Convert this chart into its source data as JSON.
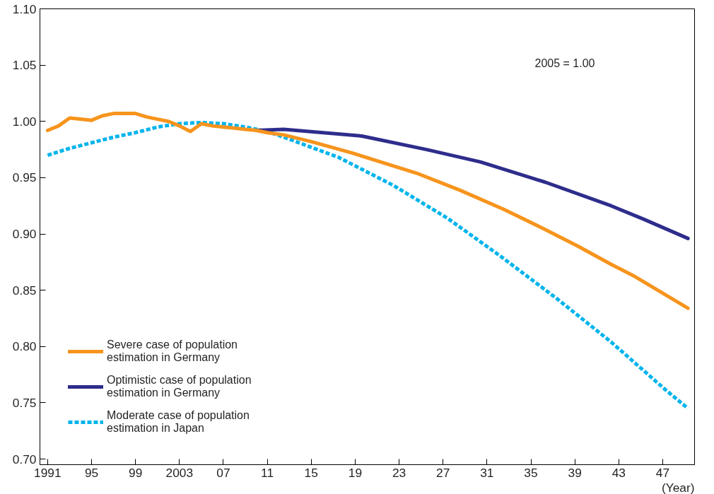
{
  "chart_data": {
    "type": "line",
    "xlabel": "(Year)",
    "annotations": [
      "2005 = 1.00"
    ],
    "xlim": [
      1990.3,
      2049.9
    ],
    "ylim": [
      0.695,
      1.1
    ],
    "xticks": [
      {
        "value": 1991,
        "label": "1991"
      },
      {
        "value": 1995,
        "label": "95"
      },
      {
        "value": 1999,
        "label": "99"
      },
      {
        "value": 2003,
        "label": "2003"
      },
      {
        "value": 2007,
        "label": "07"
      },
      {
        "value": 2011,
        "label": "11"
      },
      {
        "value": 2015,
        "label": "15"
      },
      {
        "value": 2019,
        "label": "19"
      },
      {
        "value": 2023,
        "label": "23"
      },
      {
        "value": 2027,
        "label": "27"
      },
      {
        "value": 2031,
        "label": "31"
      },
      {
        "value": 2035,
        "label": "35"
      },
      {
        "value": 2039,
        "label": "39"
      },
      {
        "value": 2043,
        "label": "43"
      },
      {
        "value": 2047,
        "label": "47"
      }
    ],
    "yticks": [
      {
        "value": 0.7,
        "label": "0.70"
      },
      {
        "value": 0.75,
        "label": "0.75"
      },
      {
        "value": 0.8,
        "label": "0.80"
      },
      {
        "value": 0.85,
        "label": "0.85"
      },
      {
        "value": 0.9,
        "label": "0.90"
      },
      {
        "value": 0.95,
        "label": "0.95"
      },
      {
        "value": 1.0,
        "label": "1.00"
      },
      {
        "value": 1.05,
        "label": "1.05"
      },
      {
        "value": 1.1,
        "label": "1.10"
      }
    ],
    "grid": false,
    "legend": "bottom left",
    "marker": "none",
    "series": [
      {
        "name": "Moderate case of population estimation in Japan",
        "color": "#00b4ec",
        "line_style": "dashed",
        "x": [
          1991,
          1993,
          1995,
          1997,
          1999,
          2001,
          2003,
          2005,
          2007,
          2009,
          2011,
          2012.5,
          2017.5,
          2022.5,
          2027.4,
          2032.4,
          2037.3,
          2042.3,
          2047.2,
          2049.3
        ],
        "values": [
          0.97,
          0.976,
          0.981,
          0.986,
          0.99,
          0.995,
          0.998,
          0.999,
          0.998,
          0.995,
          0.991,
          0.986,
          0.968,
          0.943,
          0.914,
          0.879,
          0.843,
          0.804,
          0.762,
          0.745
        ]
      },
      {
        "name": "Optimistic case of population estimation in Germany",
        "color": "#2e2d8c",
        "line_style": "solid",
        "x": [
          2010,
          2012.5,
          2019.6,
          2025.5,
          2030.4,
          2036.3,
          2042.3,
          2045.3,
          2049.3
        ],
        "values": [
          0.992,
          0.993,
          0.987,
          0.975,
          0.964,
          0.946,
          0.925,
          0.913,
          0.896
        ]
      },
      {
        "name": "Severe case of population estimation in Germany",
        "color": "#f7941d",
        "line_style": "solid",
        "x": [
          1991,
          1992,
          1993,
          1994,
          1995,
          1996,
          1997,
          1998,
          1999,
          2000,
          2001,
          2002,
          2003,
          2004,
          2005,
          2006,
          2007,
          2008,
          2009,
          2010,
          2011,
          2012.5,
          2015,
          2018.7,
          2024.6,
          2028.5,
          2032.5,
          2036.3,
          2039.3,
          2042.3,
          2044.5,
          2049.3
        ],
        "values": [
          0.992,
          0.996,
          1.003,
          1.002,
          1.001,
          1.005,
          1.007,
          1.007,
          1.007,
          1.004,
          1.002,
          1.0,
          0.996,
          0.991,
          0.998,
          0.996,
          0.995,
          0.994,
          0.993,
          0.992,
          0.99,
          0.988,
          0.982,
          0.972,
          0.954,
          0.939,
          0.922,
          0.904,
          0.889,
          0.873,
          0.862,
          0.834
        ]
      }
    ]
  }
}
